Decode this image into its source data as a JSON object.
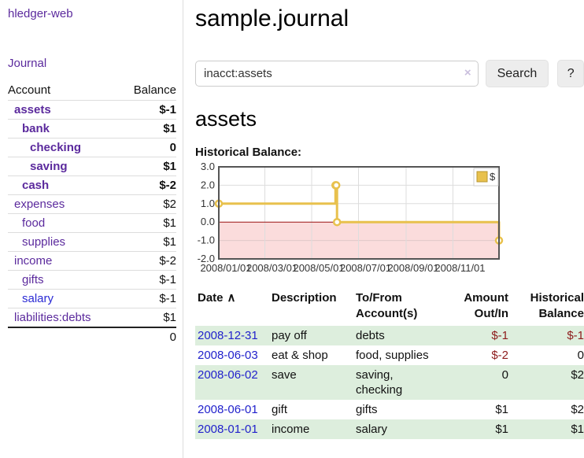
{
  "app": {
    "brand": "hledger-web",
    "nav_journal": "Journal"
  },
  "sidebar": {
    "header": {
      "account": "Account",
      "balance": "Balance"
    },
    "accounts": [
      {
        "label": "assets",
        "indent": 0,
        "bold": true,
        "balance": "$-1",
        "balance_class": "neg_strong",
        "link_color": "purple"
      },
      {
        "label": "bank",
        "indent": 1,
        "bold": true,
        "balance": "$1",
        "balance_class": "pos",
        "link_color": "purple"
      },
      {
        "label": "checking",
        "indent": 2,
        "bold": true,
        "balance": "0",
        "balance_class": "pos",
        "link_color": "purple"
      },
      {
        "label": "saving",
        "indent": 2,
        "bold": true,
        "balance": "$1",
        "balance_class": "pos",
        "link_color": "purple"
      },
      {
        "label": "cash",
        "indent": 1,
        "bold": true,
        "balance": "$-2",
        "balance_class": "neg_strong",
        "link_color": "purple"
      },
      {
        "label": "expenses",
        "indent": 0,
        "bold": false,
        "balance": "$2",
        "balance_class": "pos",
        "link_color": "purple"
      },
      {
        "label": "food",
        "indent": 1,
        "bold": false,
        "balance": "$1",
        "balance_class": "pos",
        "link_color": "purple"
      },
      {
        "label": "supplies",
        "indent": 1,
        "bold": false,
        "balance": "$1",
        "balance_class": "pos",
        "link_color": "purple"
      },
      {
        "label": "income",
        "indent": 0,
        "bold": false,
        "balance": "$-2",
        "balance_class": "neg_soft",
        "link_color": "purple"
      },
      {
        "label": "gifts",
        "indent": 1,
        "bold": false,
        "balance": "$-1",
        "balance_class": "neg_soft",
        "link_color": "purple"
      },
      {
        "label": "salary",
        "indent": 1,
        "bold": false,
        "balance": "$-1",
        "balance_class": "neg_soft",
        "link_color": "blue"
      },
      {
        "label": "liabilities:debts",
        "indent": 0,
        "bold": false,
        "balance": "$1",
        "balance_class": "pos",
        "link_color": "purple"
      }
    ],
    "total": "0"
  },
  "main": {
    "title": "sample.journal",
    "search": {
      "value": "inacct:assets",
      "clear_label": "×",
      "button_label": "Search",
      "help_label": "?"
    },
    "account_heading": "assets",
    "chart_label": "Historical Balance:"
  },
  "chart_data": {
    "type": "line",
    "title": "Historical Balance",
    "step": true,
    "series": [
      {
        "name": "$",
        "points": [
          [
            "2008-01-01",
            1
          ],
          [
            "2008-06-01",
            2
          ],
          [
            "2008-06-02",
            2
          ],
          [
            "2008-06-03",
            0
          ],
          [
            "2008-12-31",
            -1
          ]
        ]
      }
    ],
    "ylim": [
      -2.0,
      3.0
    ],
    "yticks": [
      "3.0",
      "2.0",
      "1.0",
      "0.0",
      "-1.0",
      "-2.0"
    ],
    "xticks": [
      "2008/01/01",
      "2008/03/01",
      "2008/05/01",
      "2008/07/01",
      "2008/09/01",
      "2008/11/01"
    ],
    "x_start": "2008-01-01",
    "x_end": "2008-12-31",
    "grid": true,
    "legend": {
      "label": "$",
      "position": "top-right"
    },
    "colors": {
      "line": "#e8c14d",
      "marker_fill": "#ffffff",
      "negative_region": "#fbdcdc",
      "zero_line": "#991111",
      "grid": "#dddddd",
      "border": "#555555",
      "legend_border": "#cccccc",
      "tick_text": "#333333"
    }
  },
  "register": {
    "columns": [
      "Date",
      "Description",
      "To/From Account(s)",
      "Amount Out/In",
      "Historical Balance"
    ],
    "sort_icon": "∧",
    "rows": [
      {
        "date": "2008-12-31",
        "description": "pay off",
        "accounts": "debts",
        "amount": "$-1",
        "amount_neg": true,
        "balance": "$-1",
        "balance_neg": true
      },
      {
        "date": "2008-06-03",
        "description": "eat & shop",
        "accounts": "food, supplies",
        "amount": "$-2",
        "amount_neg": true,
        "balance": "0",
        "balance_neg": false
      },
      {
        "date": "2008-06-02",
        "description": "save",
        "accounts": "saving, checking",
        "amount": "0",
        "amount_neg": false,
        "balance": "$2",
        "balance_neg": false
      },
      {
        "date": "2008-06-01",
        "description": "gift",
        "accounts": "gifts",
        "amount": "$1",
        "amount_neg": false,
        "balance": "$2",
        "balance_neg": false
      },
      {
        "date": "2008-01-01",
        "description": "income",
        "accounts": "salary",
        "amount": "$1",
        "amount_neg": false,
        "balance": "$1",
        "balance_neg": false
      }
    ]
  }
}
